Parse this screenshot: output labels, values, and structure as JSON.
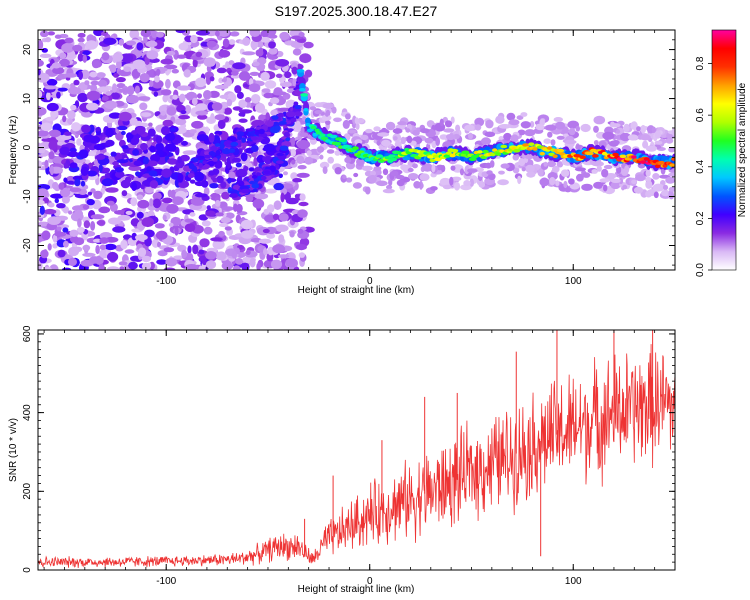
{
  "chart_data": [
    {
      "type": "heatmap",
      "title": "S197.2025.300.18.47.E27",
      "xlabel": "Height of straight line (km)",
      "ylabel": "Frequency (Hz)",
      "xlim": [
        -163,
        150
      ],
      "ylim": [
        -25,
        24
      ],
      "xticks": [
        -100,
        0,
        100
      ],
      "xtick_labels": [
        "-100",
        "0",
        "100"
      ],
      "yticks": [
        -20,
        -10,
        0,
        10,
        20
      ],
      "ytick_labels": [
        "-20",
        "-10",
        "0",
        "10",
        "20"
      ],
      "colorbar": {
        "label": "Normalized spectral amplitude",
        "range": [
          0,
          0.93
        ],
        "ticks": [
          0.0,
          0.2,
          0.4,
          0.6,
          0.8
        ],
        "tick_labels": [
          "0.0",
          "0.2",
          "0.4",
          "0.6",
          "0.8"
        ],
        "colormap": [
          "#ffffff",
          "#d9b8f5",
          "#8a2be2",
          "#4000ff",
          "#0055ff",
          "#00c8ff",
          "#00ffb0",
          "#20ff20",
          "#b0ff00",
          "#ffff00",
          "#ffa000",
          "#ff3000",
          "#ff0000",
          "#ff00a0"
        ]
      },
      "ridge": {
        "x": [
          -163,
          -130,
          -100,
          -80,
          -60,
          -45,
          -38,
          -34,
          -30,
          -20,
          -10,
          0,
          10,
          20,
          30,
          40,
          50,
          60,
          70,
          80,
          90,
          100,
          110,
          120,
          130,
          140,
          150
        ],
        "y": [
          -2,
          -2,
          -2,
          0,
          2,
          4,
          6,
          15,
          4,
          2,
          0,
          -2,
          -2,
          -1,
          -2,
          -1,
          -2,
          -1,
          0,
          0,
          -1,
          -2,
          -1,
          -2,
          -2,
          -3,
          -3
        ]
      },
      "ridge_branches": [
        {
          "x": [
            -70,
            -55,
            -45,
            -38,
            -33
          ],
          "y": [
            -10,
            -7,
            -3,
            6,
            15
          ]
        },
        {
          "x": [
            -90,
            -75,
            -60,
            -45,
            -35
          ],
          "y": [
            -5,
            -1,
            2,
            5,
            7
          ]
        }
      ],
      "peak_amplitude": [
        {
          "x": -30,
          "value": 0.45
        },
        {
          "x": 0,
          "value": 0.55
        },
        {
          "x": 30,
          "value": 0.62
        },
        {
          "x": 60,
          "value": 0.66
        },
        {
          "x": 90,
          "value": 0.72
        },
        {
          "x": 110,
          "value": 0.85
        },
        {
          "x": 140,
          "value": 0.9
        }
      ]
    },
    {
      "type": "line",
      "xlabel": "Height of straight line (km)",
      "ylabel": "SNR (10 * v/v)",
      "xlim": [
        -163,
        150
      ],
      "ylim": [
        0,
        610
      ],
      "xticks": [
        -100,
        0,
        100
      ],
      "xtick_labels": [
        "-100",
        "0",
        "100"
      ],
      "yticks": [
        0,
        200,
        400,
        600
      ],
      "ytick_labels": [
        "0",
        "200",
        "400",
        "600"
      ],
      "series": [
        {
          "name": "SNR",
          "color": "#ee3333",
          "trend_x": [
            -163,
            -130,
            -100,
            -80,
            -65,
            -55,
            -45,
            -35,
            -28,
            -22,
            -10,
            0,
            10,
            20,
            30,
            40,
            50,
            60,
            70,
            80,
            90,
            100,
            110,
            120,
            130,
            140,
            150
          ],
          "trend_y": [
            20,
            20,
            22,
            25,
            28,
            40,
            60,
            60,
            25,
            70,
            110,
            140,
            160,
            180,
            200,
            220,
            250,
            270,
            290,
            320,
            340,
            360,
            380,
            400,
            410,
            420,
            420
          ],
          "spread_y": [
            14,
            14,
            14,
            14,
            18,
            25,
            35,
            35,
            18,
            45,
            65,
            80,
            90,
            100,
            110,
            115,
            120,
            125,
            130,
            135,
            140,
            145,
            150,
            150,
            150,
            150,
            150
          ]
        }
      ],
      "spikes": [
        {
          "x": -32,
          "y": 130
        },
        {
          "x": -18,
          "y": 240
        },
        {
          "x": 6,
          "y": 330
        },
        {
          "x": 27,
          "y": 440
        },
        {
          "x": 43,
          "y": 450
        },
        {
          "x": 72,
          "y": 555
        },
        {
          "x": 84,
          "y": 35
        },
        {
          "x": 92,
          "y": 610
        },
        {
          "x": 120,
          "y": 610
        },
        {
          "x": 139,
          "y": 610
        }
      ]
    }
  ]
}
